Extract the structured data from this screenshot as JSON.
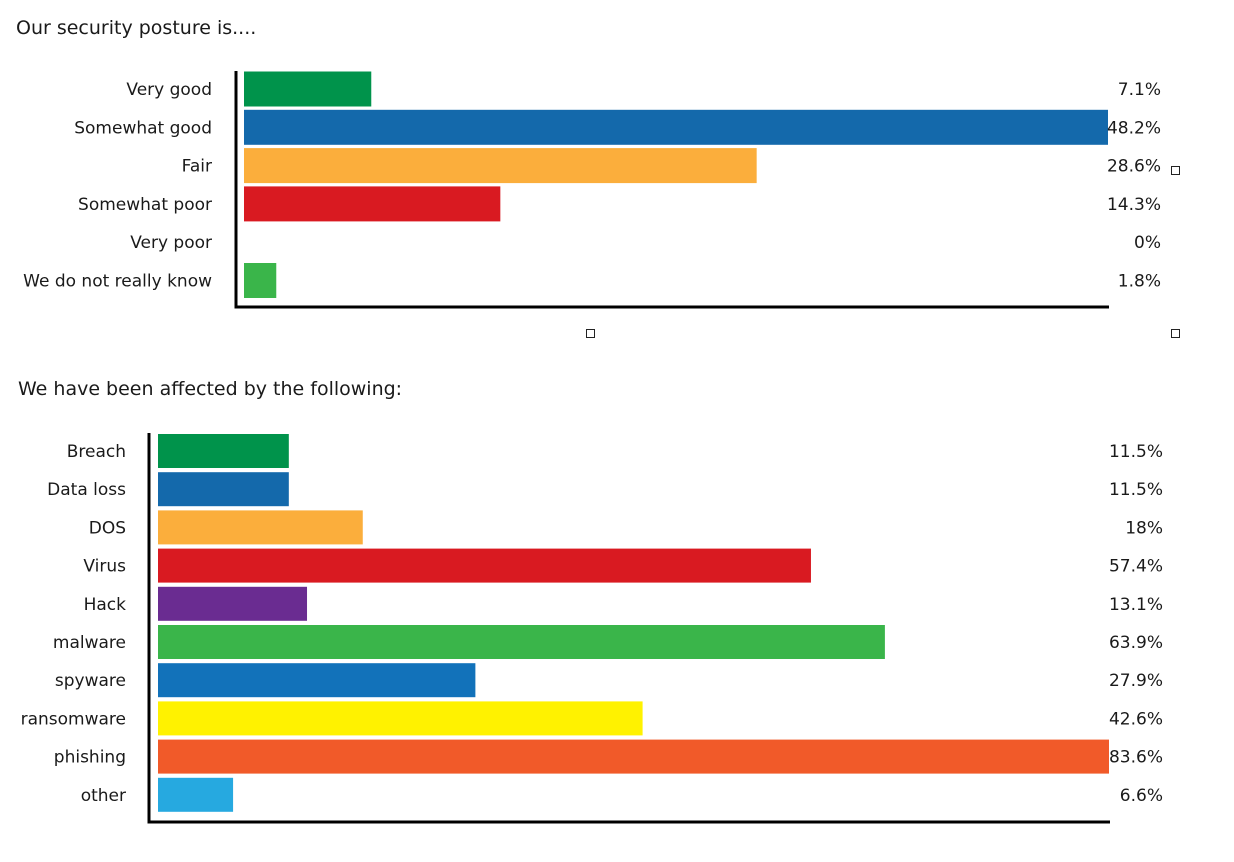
{
  "chart_data": [
    {
      "type": "bar",
      "orientation": "horizontal",
      "title": "Our security posture is....",
      "categories": [
        "Very good",
        "Somewhat good",
        "Fair",
        "Somewhat poor",
        "Very poor",
        "We do not really know"
      ],
      "values": [
        7.1,
        48.2,
        28.6,
        14.3,
        0,
        1.8
      ],
      "value_labels": [
        "7.1%",
        "48.2%",
        "28.6%",
        "14.3%",
        "0%",
        "1.8%"
      ],
      "colors": [
        "#00934B",
        "#1469AB",
        "#FBAE3C",
        "#D91A21",
        "#7A3E9A",
        "#3AB54A"
      ],
      "xlim": [
        0,
        48.2
      ],
      "grid": false,
      "legend": false
    },
    {
      "type": "bar",
      "orientation": "horizontal",
      "title": "We have been affected by the following:",
      "categories": [
        "Breach",
        "Data loss",
        "DOS",
        "Virus",
        "Hack",
        "malware",
        "spyware",
        "ransomware",
        "phishing",
        "other"
      ],
      "values": [
        11.5,
        11.5,
        18,
        57.4,
        13.1,
        63.9,
        27.9,
        42.6,
        83.6,
        6.6
      ],
      "value_labels": [
        "11.5%",
        "11.5%",
        "18%",
        "57.4%",
        "13.1%",
        "63.9%",
        "27.9%",
        "42.6%",
        "83.6%",
        "6.6%"
      ],
      "colors": [
        "#00934B",
        "#1469AB",
        "#FBAE3C",
        "#D91A21",
        "#6A2C91",
        "#3AB54A",
        "#1272BA",
        "#FFF200",
        "#F15A29",
        "#26A9E0"
      ],
      "xlim": [
        0,
        83.6
      ],
      "grid": false,
      "legend": false
    }
  ]
}
